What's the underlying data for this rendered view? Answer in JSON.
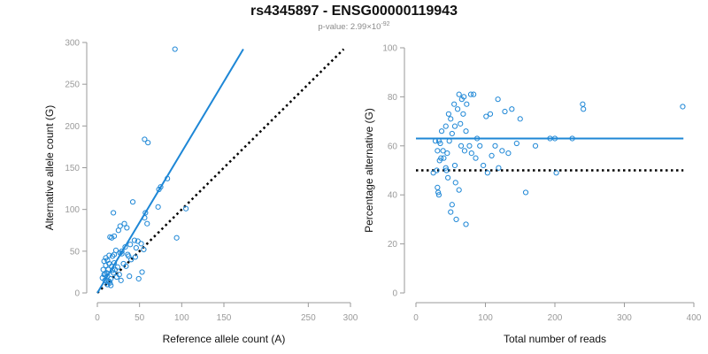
{
  "header": {
    "title": "rs4345897 - ENSG00000119943",
    "pvalue_prefix": "p-value: 2.99×10",
    "pvalue_exp": "-92"
  },
  "colors": {
    "points": "#1e87d6",
    "fit_line": "#1e87d6",
    "reference_line": "#000000",
    "axis": "#9a9a9a"
  },
  "chart_data": [
    {
      "type": "scatter",
      "xlabel": "Reference allele count (A)",
      "ylabel": "Alternative allele count (G)",
      "xlim": [
        0,
        300
      ],
      "ylim": [
        0,
        300
      ],
      "x_ticks": [
        0,
        50,
        100,
        150,
        250,
        300
      ],
      "y_ticks": [
        0,
        50,
        100,
        150,
        200,
        250,
        300
      ],
      "points": [
        [
          92,
          292
        ],
        [
          56,
          184
        ],
        [
          60,
          180
        ],
        [
          75,
          127
        ],
        [
          73,
          124
        ],
        [
          83,
          137
        ],
        [
          105,
          101
        ],
        [
          94,
          66
        ],
        [
          57,
          96
        ],
        [
          56,
          90
        ],
        [
          59,
          83
        ],
        [
          42,
          109
        ],
        [
          72,
          103
        ],
        [
          19,
          96
        ],
        [
          32,
          83
        ],
        [
          25,
          75
        ],
        [
          20,
          68
        ],
        [
          15,
          67
        ],
        [
          17,
          66
        ],
        [
          27,
          80
        ],
        [
          35,
          78
        ],
        [
          29,
          50
        ],
        [
          44,
          63
        ],
        [
          48,
          62
        ],
        [
          39,
          58
        ],
        [
          33,
          55
        ],
        [
          22,
          51
        ],
        [
          27,
          48
        ],
        [
          29,
          47
        ],
        [
          20,
          46
        ],
        [
          18,
          44
        ],
        [
          14,
          45
        ],
        [
          10,
          42
        ],
        [
          8,
          38
        ],
        [
          14,
          35
        ],
        [
          17,
          32
        ],
        [
          20,
          36
        ],
        [
          24,
          31
        ],
        [
          10,
          33
        ],
        [
          13,
          28
        ],
        [
          7,
          28
        ],
        [
          9,
          23
        ],
        [
          12,
          20
        ],
        [
          16,
          17
        ],
        [
          19,
          24
        ],
        [
          23,
          19
        ],
        [
          26,
          22
        ],
        [
          28,
          15
        ],
        [
          15,
          12
        ],
        [
          12,
          10
        ],
        [
          9,
          15
        ],
        [
          6,
          18
        ],
        [
          13,
          13
        ],
        [
          11,
          24
        ],
        [
          45,
          43
        ],
        [
          36,
          46
        ],
        [
          40,
          40
        ],
        [
          53,
          25
        ],
        [
          49,
          17
        ],
        [
          38,
          20
        ],
        [
          16,
          9
        ],
        [
          14,
          14
        ],
        [
          34,
          32
        ],
        [
          55,
          52
        ],
        [
          21,
          28
        ],
        [
          31,
          35
        ],
        [
          12,
          39
        ],
        [
          37,
          44
        ],
        [
          52,
          59
        ],
        [
          46,
          54
        ],
        [
          8,
          22
        ],
        [
          18,
          27
        ]
      ],
      "fit_line": {
        "from": [
          0,
          0
        ],
        "to": [
          173,
          292
        ]
      },
      "reference_line": {
        "from": [
          0,
          0
        ],
        "to": [
          292,
          292
        ]
      }
    },
    {
      "type": "scatter",
      "xlabel": "Total number of reads",
      "ylabel": "Percentage alternative (G)",
      "xlim": [
        0,
        400
      ],
      "ylim": [
        0,
        100
      ],
      "x_ticks": [
        0,
        100,
        200,
        300,
        400
      ],
      "y_ticks": [
        0,
        20,
        40,
        60,
        80,
        100
      ],
      "points": [
        [
          384,
          76
        ],
        [
          240,
          77
        ],
        [
          241,
          75
        ],
        [
          200,
          63
        ],
        [
          193,
          63
        ],
        [
          225,
          63
        ],
        [
          202,
          49
        ],
        [
          158,
          41
        ],
        [
          128,
          74
        ],
        [
          138,
          75
        ],
        [
          118,
          79
        ],
        [
          150,
          71
        ],
        [
          107,
          73
        ],
        [
          101,
          72
        ],
        [
          83,
          81
        ],
        [
          79,
          81
        ],
        [
          73,
          77
        ],
        [
          69,
          80
        ],
        [
          62,
          81
        ],
        [
          66,
          79
        ],
        [
          55,
          77
        ],
        [
          47,
          73
        ],
        [
          50,
          71
        ],
        [
          43,
          68
        ],
        [
          37,
          66
        ],
        [
          33,
          62
        ],
        [
          28,
          62
        ],
        [
          31,
          58
        ],
        [
          34,
          54
        ],
        [
          40,
          55
        ],
        [
          45,
          57
        ],
        [
          48,
          62
        ],
        [
          52,
          65
        ],
        [
          56,
          68
        ],
        [
          60,
          75
        ],
        [
          64,
          69
        ],
        [
          68,
          73
        ],
        [
          72,
          66
        ],
        [
          77,
          60
        ],
        [
          80,
          57
        ],
        [
          86,
          55
        ],
        [
          92,
          60
        ],
        [
          97,
          52
        ],
        [
          103,
          49
        ],
        [
          109,
          56
        ],
        [
          114,
          60
        ],
        [
          119,
          51
        ],
        [
          124,
          58
        ],
        [
          133,
          57
        ],
        [
          145,
          61
        ],
        [
          172,
          60
        ],
        [
          30,
          50
        ],
        [
          31,
          43
        ],
        [
          32,
          41
        ],
        [
          33,
          40
        ],
        [
          25,
          49
        ],
        [
          43,
          51
        ],
        [
          46,
          47
        ],
        [
          57,
          45
        ],
        [
          62,
          42
        ],
        [
          52,
          36
        ],
        [
          50,
          33
        ],
        [
          58,
          30
        ],
        [
          72,
          28
        ],
        [
          35,
          61
        ],
        [
          36,
          55
        ],
        [
          39,
          58
        ],
        [
          44,
          50
        ],
        [
          56,
          52
        ],
        [
          65,
          60
        ],
        [
          70,
          58
        ],
        [
          88,
          63
        ]
      ],
      "fit_line": {
        "from": [
          0,
          63
        ],
        "to": [
          385,
          63
        ]
      },
      "reference_line": {
        "from": [
          0,
          50
        ],
        "to": [
          385,
          50
        ]
      }
    }
  ]
}
